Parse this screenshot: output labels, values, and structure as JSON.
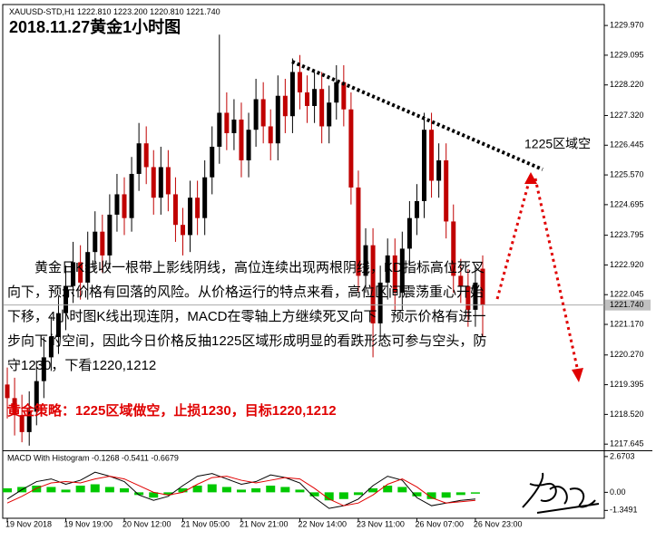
{
  "header": {
    "symbol_info": "XAUUSD-STD,H1  1222.810 1223.200 1220.810 1221.740",
    "title": "2018.11.27黄金1小时图"
  },
  "chart_data": [
    {
      "type": "candlestick",
      "x": [
        0,
        2,
        4,
        6,
        8,
        10,
        12,
        14,
        16,
        18,
        20,
        22,
        24,
        26,
        28,
        30,
        32,
        34,
        36,
        38,
        40,
        42,
        44,
        46,
        48,
        50,
        52,
        54,
        56,
        58,
        60,
        62,
        64,
        66,
        68,
        70,
        72,
        74,
        76,
        78,
        80,
        82,
        84,
        86,
        88,
        90,
        92,
        94,
        96,
        98,
        100,
        102,
        104,
        106,
        108,
        110,
        112,
        114,
        116,
        118,
        120,
        122,
        124,
        126,
        128,
        130
      ],
      "open": [
        1219.4,
        1219.0,
        1218.5,
        1218.0,
        1218.6,
        1219.5,
        1220.2,
        1220.8,
        1221.5,
        1222.3,
        1223.0,
        1222.4,
        1223.3,
        1223.9,
        1223.2,
        1224.4,
        1225.0,
        1224.3,
        1225.6,
        1226.5,
        1225.8,
        1224.9,
        1225.8,
        1225.0,
        1224.1,
        1223.8,
        1224.9,
        1224.3,
        1225.5,
        1226.4,
        1227.4,
        1226.8,
        1227.2,
        1226.0,
        1226.9,
        1227.8,
        1227.0,
        1226.5,
        1227.9,
        1227.3,
        1228.6,
        1228.0,
        1227.6,
        1228.1,
        1227.0,
        1227.7,
        1228.3,
        1227.5,
        1225.2,
        1222.6,
        1223.5,
        1221.2,
        1222.4,
        1223.2,
        1222.1,
        1223.4,
        1224.3,
        1224.8,
        1226.9,
        1225.4,
        1226.0,
        1224.2,
        1222.6,
        1222.3,
        1221.6,
        1222.81
      ],
      "high": [
        1219.9,
        1219.6,
        1219.1,
        1219.2,
        1220.1,
        1220.8,
        1221.4,
        1222.0,
        1222.9,
        1223.6,
        1223.5,
        1223.9,
        1224.5,
        1224.4,
        1225.0,
        1225.6,
        1225.5,
        1226.1,
        1227.1,
        1227.0,
        1226.3,
        1226.4,
        1226.3,
        1225.5,
        1224.6,
        1225.4,
        1225.4,
        1226.0,
        1227.0,
        1229.7,
        1228.0,
        1227.8,
        1227.7,
        1227.4,
        1228.4,
        1228.3,
        1227.5,
        1228.5,
        1228.4,
        1229.0,
        1229.1,
        1228.5,
        1228.6,
        1228.6,
        1228.2,
        1228.8,
        1228.8,
        1228.0,
        1225.7,
        1224.0,
        1224.0,
        1222.9,
        1223.7,
        1223.7,
        1223.9,
        1224.8,
        1225.3,
        1227.4,
        1227.4,
        1226.5,
        1226.5,
        1224.7,
        1223.1,
        1222.8,
        1222.9,
        1223.2
      ],
      "low": [
        1218.4,
        1217.9,
        1217.7,
        1217.6,
        1218.2,
        1219.0,
        1219.8,
        1220.3,
        1221.0,
        1221.8,
        1221.9,
        1221.9,
        1222.8,
        1222.7,
        1222.8,
        1223.9,
        1223.8,
        1223.9,
        1225.1,
        1225.3,
        1224.4,
        1224.4,
        1224.5,
        1223.6,
        1223.2,
        1223.3,
        1223.8,
        1223.8,
        1225.0,
        1225.9,
        1226.3,
        1226.3,
        1225.5,
        1225.5,
        1226.4,
        1226.5,
        1226.0,
        1226.0,
        1226.8,
        1226.8,
        1227.5,
        1227.1,
        1227.1,
        1226.5,
        1226.5,
        1227.2,
        1227.0,
        1224.7,
        1222.1,
        1222.1,
        1220.2,
        1220.7,
        1221.9,
        1221.6,
        1221.6,
        1222.9,
        1223.8,
        1224.3,
        1224.9,
        1224.9,
        1223.7,
        1222.1,
        1221.8,
        1221.1,
        1221.1,
        1220.81
      ],
      "close": [
        1219.0,
        1218.5,
        1218.0,
        1218.6,
        1219.5,
        1220.2,
        1220.8,
        1221.5,
        1222.3,
        1223.0,
        1222.4,
        1223.3,
        1223.9,
        1223.2,
        1224.4,
        1225.0,
        1224.3,
        1225.6,
        1226.5,
        1225.8,
        1224.9,
        1225.8,
        1225.0,
        1224.1,
        1223.8,
        1224.9,
        1224.3,
        1225.5,
        1226.4,
        1227.4,
        1226.8,
        1227.2,
        1226.0,
        1226.9,
        1227.8,
        1227.0,
        1226.5,
        1227.9,
        1227.3,
        1228.6,
        1228.0,
        1227.6,
        1228.1,
        1227.0,
        1227.7,
        1228.3,
        1227.5,
        1225.2,
        1222.6,
        1223.5,
        1221.2,
        1222.4,
        1223.2,
        1222.1,
        1223.4,
        1224.3,
        1224.8,
        1226.9,
        1225.4,
        1226.0,
        1224.2,
        1222.6,
        1222.3,
        1221.6,
        1222.4,
        1221.74
      ],
      "up_color": "#000000",
      "down_color": "#c00000",
      "xlim": [
        -1,
        163
      ],
      "xticks": [
        {
          "value": 0,
          "label": "19 Nov 2018"
        },
        {
          "value": 16,
          "label": "19 Nov 19:00"
        },
        {
          "value": 32,
          "label": "20 Nov 12:00"
        },
        {
          "value": 48,
          "label": "21 Nov 05:00"
        },
        {
          "value": 64,
          "label": "21 Nov 21:00"
        },
        {
          "value": 80,
          "label": "22 Nov 14:00"
        },
        {
          "value": 96,
          "label": "23 Nov 11:00"
        },
        {
          "value": 112,
          "label": "26 Nov 07:00"
        },
        {
          "value": 128,
          "label": "26 Nov 23:00"
        }
      ],
      "ylim": [
        1217.49,
        1230.56
      ],
      "yticks": [
        {
          "value": 1229.97,
          "label": "1229.970"
        },
        1229.095,
        {
          "value": 1228.22,
          "label": "1228.220"
        },
        {
          "value": 1227.32,
          "label": "1227.320"
        },
        1226.445,
        {
          "value": 1225.57,
          "label": "1225.570"
        },
        1224.695,
        1223.795,
        {
          "value": 1222.92,
          "label": "1222.920"
        },
        1222.045,
        {
          "value": 1221.17,
          "label": "1221.170"
        },
        {
          "value": 1220.27,
          "label": "1220.270"
        },
        1219.395,
        {
          "value": 1218.52,
          "label": "1218.520"
        },
        1217.645
      ],
      "current_price": {
        "value": 1221.74,
        "label": "1221.740"
      },
      "annotation": "1225区域空"
    },
    {
      "type": "macd",
      "title": "MACD With Histogram -0.1268 -0.5411 -0.6679",
      "x": [
        0,
        4,
        8,
        12,
        16,
        20,
        24,
        28,
        32,
        36,
        40,
        44,
        48,
        52,
        56,
        60,
        64,
        68,
        72,
        76,
        80,
        84,
        88,
        92,
        96,
        100,
        104,
        108,
        112,
        116,
        120,
        124,
        128
      ],
      "histogram": [
        0.3,
        0.4,
        0.5,
        0.4,
        0.2,
        0.5,
        0.6,
        0.4,
        0.3,
        -0.2,
        -0.4,
        -0.2,
        0.3,
        0.5,
        0.6,
        0.4,
        0.2,
        0.3,
        0.5,
        0.4,
        0.2,
        -0.3,
        -0.6,
        -0.5,
        -0.2,
        0.3,
        0.5,
        0.4,
        -0.3,
        -0.5,
        -0.4,
        -0.2,
        -0.1
      ],
      "macd": [
        -0.5,
        0.2,
        0.8,
        1.0,
        0.6,
        0.9,
        1.5,
        1.2,
        0.8,
        -0.2,
        -0.6,
        -0.3,
        0.5,
        1.2,
        1.4,
        1.0,
        0.6,
        0.8,
        1.3,
        1.1,
        0.7,
        -0.4,
        -1.2,
        -1.0,
        -0.5,
        0.5,
        1.2,
        0.9,
        -0.4,
        -1.0,
        -0.8,
        -0.6,
        -0.5
      ],
      "signal": [
        -0.8,
        -0.3,
        0.3,
        0.7,
        0.8,
        0.7,
        1.0,
        1.2,
        1.0,
        0.5,
        0.0,
        -0.2,
        0.0,
        0.6,
        1.1,
        1.2,
        0.9,
        0.7,
        0.9,
        1.1,
        1.0,
        0.3,
        -0.5,
        -1.0,
        -0.8,
        -0.2,
        0.6,
        1.0,
        0.4,
        -0.4,
        -0.8,
        -0.7,
        -0.6
      ],
      "hist_color": "#00c800",
      "macd_color": "#000000",
      "signal_color": "#e00000",
      "xlim": [
        -1,
        163
      ],
      "ylim": [
        -1.8,
        3.0
      ],
      "yticks": [
        2.6703,
        {
          "value": 0,
          "label": "0.00"
        },
        -1.3491
      ]
    }
  ],
  "commentary": {
    "paragraph": "黄金日K线收一根带上影线阴线，高位连续出现两根阴线，KD指标高位死叉向下，预示价格有回落的风险。从价格运行的特点来看，高位区间震荡重心开始下移，4小时图K线出现连阴，MACD在零轴上方继续死叉向下，预示价格有进一步向下的空间，因此今日价格反抽1225区域形成明显的看跌形态可参与空头，防守1230，下看1220,1212",
    "strategy": "黄金策略：1225区域做空，止损1230，目标1220,1212"
  }
}
